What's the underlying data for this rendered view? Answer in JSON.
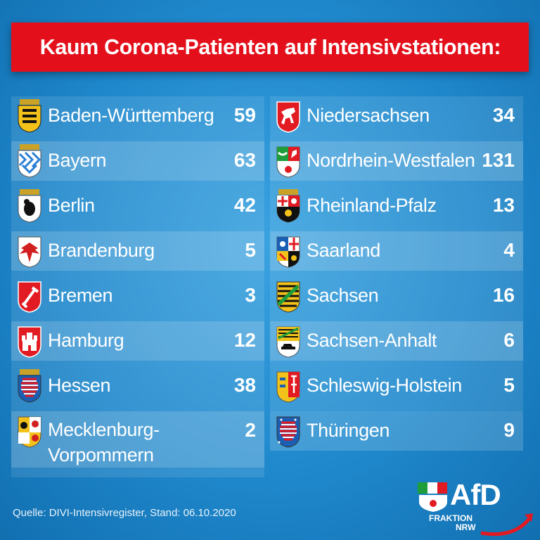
{
  "title": "Kaum Corona-Patienten auf Intensivstationen:",
  "colors": {
    "title_bar": "#e3101b",
    "background": "#1f88cc",
    "text": "#ffffff"
  },
  "left_states": [
    {
      "name": "Baden-Württemberg",
      "value": "59",
      "icon": "baden-wuerttemberg-coat-icon"
    },
    {
      "name": "Bayern",
      "value": "63",
      "icon": "bayern-coat-icon"
    },
    {
      "name": "Berlin",
      "value": "42",
      "icon": "berlin-coat-icon"
    },
    {
      "name": "Brandenburg",
      "value": "5",
      "icon": "brandenburg-coat-icon"
    },
    {
      "name": "Bremen",
      "value": "3",
      "icon": "bremen-coat-icon"
    },
    {
      "name": "Hamburg",
      "value": "12",
      "icon": "hamburg-coat-icon"
    },
    {
      "name": "Hessen",
      "value": "38",
      "icon": "hessen-coat-icon"
    },
    {
      "name": "Mecklenburg-Vorpommern",
      "value": "2",
      "icon": "mecklenburg-vorpommern-coat-icon"
    }
  ],
  "right_states": [
    {
      "name": "Niedersachsen",
      "value": "34",
      "icon": "niedersachsen-coat-icon"
    },
    {
      "name": "Nordrhein-Westfalen",
      "value": "131",
      "icon": "nordrhein-westfalen-coat-icon"
    },
    {
      "name": "Rheinland-Pfalz",
      "value": "13",
      "icon": "rheinland-pfalz-coat-icon"
    },
    {
      "name": "Saarland",
      "value": "4",
      "icon": "saarland-coat-icon"
    },
    {
      "name": "Sachsen",
      "value": "16",
      "icon": "sachsen-coat-icon"
    },
    {
      "name": "Sachsen-Anhalt",
      "value": "6",
      "icon": "sachsen-anhalt-coat-icon"
    },
    {
      "name": "Schleswig-Holstein",
      "value": "5",
      "icon": "schleswig-holstein-coat-icon"
    },
    {
      "name": "Thüringen",
      "value": "9",
      "icon": "thueringen-coat-icon"
    }
  ],
  "source": "Quelle: DIVI-Intensivregister, Stand: 06.10.2020",
  "logo": {
    "name": "AfD",
    "line1": "FRAKTION",
    "line2": "NRW"
  }
}
